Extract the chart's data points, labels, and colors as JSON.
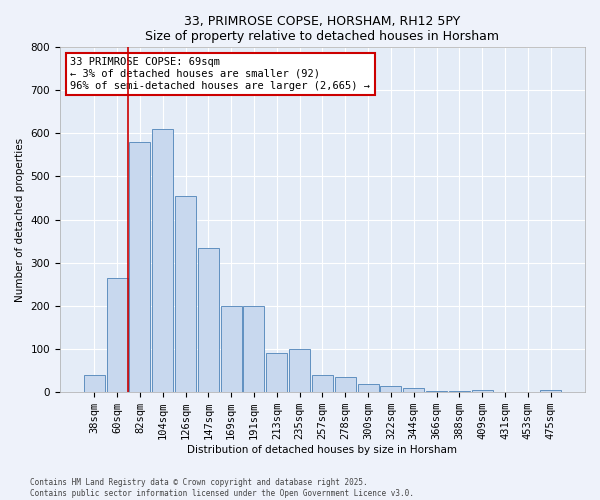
{
  "title1": "33, PRIMROSE COPSE, HORSHAM, RH12 5PY",
  "title2": "Size of property relative to detached houses in Horsham",
  "xlabel": "Distribution of detached houses by size in Horsham",
  "ylabel": "Number of detached properties",
  "bins": [
    "38sqm",
    "60sqm",
    "82sqm",
    "104sqm",
    "126sqm",
    "147sqm",
    "169sqm",
    "191sqm",
    "213sqm",
    "235sqm",
    "257sqm",
    "278sqm",
    "300sqm",
    "322sqm",
    "344sqm",
    "366sqm",
    "388sqm",
    "409sqm",
    "431sqm",
    "453sqm",
    "475sqm"
  ],
  "values": [
    40,
    265,
    580,
    610,
    455,
    335,
    200,
    200,
    90,
    100,
    40,
    35,
    20,
    15,
    10,
    3,
    3,
    5,
    0,
    0,
    5
  ],
  "red_line_x": 1.5,
  "bar_color": "#c8d8ee",
  "bar_edge_color": "#6090c0",
  "annotation_text": "33 PRIMROSE COPSE: 69sqm\n← 3% of detached houses are smaller (92)\n96% of semi-detached houses are larger (2,665) →",
  "annotation_box_color": "#ffffff",
  "annotation_border_color": "#cc0000",
  "red_line_color": "#cc0000",
  "ylim": [
    0,
    800
  ],
  "yticks": [
    0,
    100,
    200,
    300,
    400,
    500,
    600,
    700,
    800
  ],
  "footer1": "Contains HM Land Registry data © Crown copyright and database right 2025.",
  "footer2": "Contains public sector information licensed under the Open Government Licence v3.0.",
  "bg_color": "#eef2fa",
  "plot_bg_color": "#e4ecf7",
  "grid_color": "#ffffff",
  "title_fontsize": 9,
  "axis_fontsize": 7.5,
  "tick_fontsize": 7.5,
  "ann_fontsize": 7.5
}
